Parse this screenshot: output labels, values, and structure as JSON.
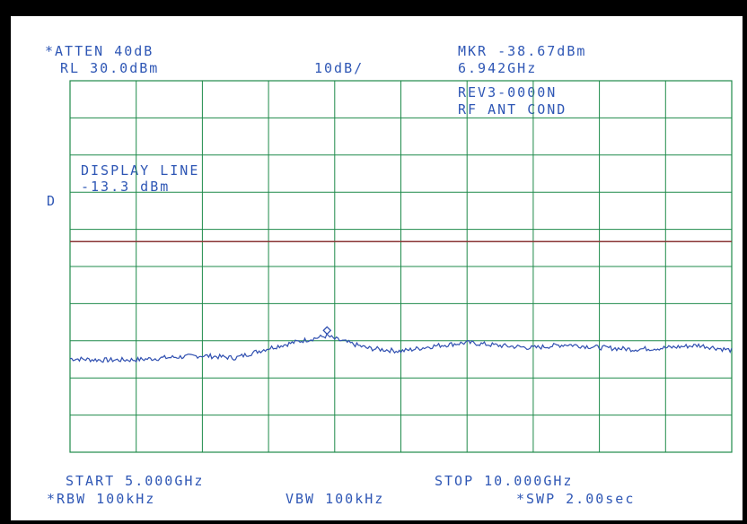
{
  "header": {
    "atten": "*ATTEN 40dB",
    "ref_level": "RL 30.0dBm",
    "scale": "10dB/",
    "marker_level": "MKR -38.67dBm",
    "marker_freq": "6.942GHz",
    "rev": "REV3-0000N",
    "test": "RF ANT COND"
  },
  "display_line": {
    "label": "DISPLAY LINE",
    "value": "-13.3 dBm",
    "side_marker": "D"
  },
  "footer": {
    "start": "START 5.000GHz",
    "stop": "STOP 10.000GHz",
    "rbw": "*RBW 100kHz",
    "vbw": "VBW 100kHz",
    "swp": "*SWP 2.00sec"
  },
  "colors": {
    "text": "#2f57b5",
    "grid": "#1e8a4a",
    "trace": "#2f4fb0",
    "display_line": "#8a3535"
  },
  "chart_data": {
    "type": "line",
    "x_unit": "GHz",
    "y_unit": "dBm",
    "xlim": [
      5.0,
      10.0
    ],
    "ylim": [
      -70.0,
      30.0
    ],
    "grid": true,
    "display_line_dbm": -13.3,
    "marker": {
      "x": 6.942,
      "y": -38.67
    },
    "series": [
      {
        "x": [
          5.0,
          5.25,
          5.5,
          5.75,
          6.0,
          6.25,
          6.5,
          6.75,
          6.942,
          7.0,
          7.25,
          7.5,
          7.75,
          8.0,
          8.25,
          8.5,
          8.75,
          9.0,
          9.25,
          9.5,
          9.75,
          10.0
        ],
        "values": [
          -44.8,
          -45.2,
          -45.1,
          -44.5,
          -44.0,
          -44.6,
          -42.0,
          -40.0,
          -38.67,
          -39.5,
          -42.0,
          -42.8,
          -41.4,
          -40.5,
          -41.3,
          -41.9,
          -41.0,
          -41.8,
          -42.3,
          -41.9,
          -41.2,
          -42.6
        ]
      }
    ]
  }
}
